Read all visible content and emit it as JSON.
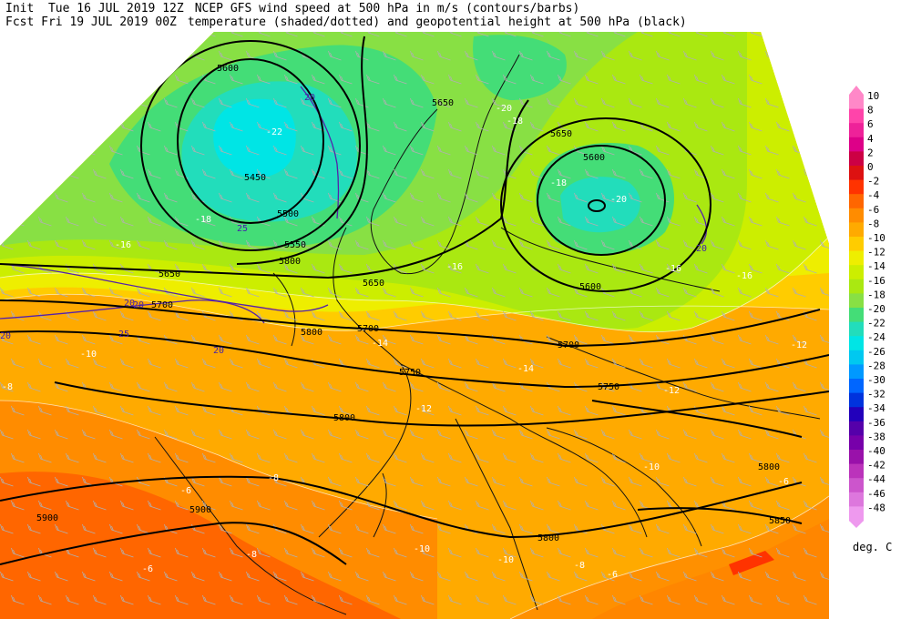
{
  "header": {
    "init_label": "Init",
    "init_time": "Tue 16 JUL 2019 12Z",
    "fcst_label": "Fcst",
    "fcst_time": "Fri 19 JUL 2019 00Z",
    "title_line1": "NCEP GFS wind speed at 500 hPa in m/s (contours/barbs)",
    "title_line2": "temperature (shaded/dotted) and geopotential height at 500 hPa (black)"
  },
  "legend": {
    "units": "deg. C",
    "entries": [
      {
        "label": "10",
        "color": "#ff88c8"
      },
      {
        "label": "8",
        "color": "#ff44aa"
      },
      {
        "label": "6",
        "color": "#ee2299"
      },
      {
        "label": "4",
        "color": "#dd0088"
      },
      {
        "label": "2",
        "color": "#cc0044"
      },
      {
        "label": "0",
        "color": "#dd1111"
      },
      {
        "label": "-2",
        "color": "#ff3300"
      },
      {
        "label": "-4",
        "color": "#ff6600"
      },
      {
        "label": "-6",
        "color": "#ff8c00"
      },
      {
        "label": "-8",
        "color": "#ffaa00"
      },
      {
        "label": "-10",
        "color": "#ffcc00"
      },
      {
        "label": "-12",
        "color": "#eeee00"
      },
      {
        "label": "-14",
        "color": "#ccee00"
      },
      {
        "label": "-16",
        "color": "#aae811"
      },
      {
        "label": "-18",
        "color": "#88e044"
      },
      {
        "label": "-20",
        "color": "#44dd77"
      },
      {
        "label": "-22",
        "color": "#22ddbb"
      },
      {
        "label": "-24",
        "color": "#00e5e5"
      },
      {
        "label": "-26",
        "color": "#00c8f0"
      },
      {
        "label": "-28",
        "color": "#0099ff"
      },
      {
        "label": "-30",
        "color": "#0066ff"
      },
      {
        "label": "-32",
        "color": "#0033dd"
      },
      {
        "label": "-34",
        "color": "#2200bb"
      },
      {
        "label": "-36",
        "color": "#5500aa"
      },
      {
        "label": "-38",
        "color": "#7700aa"
      },
      {
        "label": "-40",
        "color": "#9911aa"
      },
      {
        "label": "-42",
        "color": "#bb33bb"
      },
      {
        "label": "-44",
        "color": "#cc55cc"
      },
      {
        "label": "-46",
        "color": "#dd77dd"
      },
      {
        "label": "-48",
        "color": "#ee99ee"
      }
    ]
  },
  "map_labels": {
    "heights": [
      "5600",
      "5450",
      "5500",
      "5550",
      "5650",
      "5650",
      "5650",
      "5600",
      "5600",
      "5650",
      "5700",
      "5700",
      "5750",
      "5700",
      "5750",
      "5800",
      "5800",
      "5800",
      "5800",
      "5850",
      "5900",
      "5900",
      "5800"
    ],
    "winds": [
      "20",
      "20",
      "25",
      "20",
      "25",
      "20",
      "20",
      "20"
    ],
    "temps": [
      "-22",
      "-20",
      "-20",
      "-18",
      "-18",
      "-18",
      "-16",
      "-16",
      "-16",
      "-16",
      "-14",
      "-14",
      "-12",
      "-12",
      "-12",
      "-10",
      "-10",
      "-10",
      "-10",
      "-8",
      "-8",
      "-8",
      "-8",
      "-6",
      "-6",
      "-6",
      "-6"
    ]
  },
  "colors": {
    "contour": "#000000",
    "wind_contour": "#5522aa",
    "barb": "#b0b0b0",
    "coast": "#111111"
  }
}
